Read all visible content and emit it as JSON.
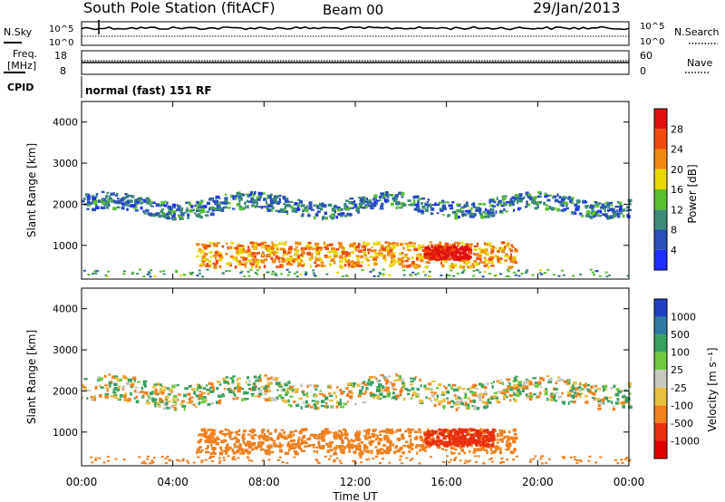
{
  "header": {
    "station": "South Pole Station (fitACF)",
    "beam": "Beam 00",
    "date": "29/Jan/2013"
  },
  "side_panels": {
    "nsky_label": "N.Sky",
    "nsky_tick_top": "10^5",
    "nsky_tick_bottom": "10^0",
    "nsearch_label": "N.Search",
    "nsearch_tick_top": "10^5",
    "nsearch_tick_bottom": "10^0",
    "freq_label_line1": "Freq.",
    "freq_label_line2": "[MHz]",
    "freq_tick_top": "18",
    "freq_tick_bottom": "8",
    "nave_label": "Nave",
    "nave_tick_top": "60",
    "nave_tick_bottom": "0",
    "cpid_label": "CPID",
    "cpid_value": "normal (fast) 151 RF"
  },
  "axes": {
    "y_label": "Slant Range [km]",
    "y_ticks": [
      "1000",
      "2000",
      "3000",
      "4000"
    ],
    "x_label": "Time UT",
    "x_ticks": [
      "00:00",
      "04:00",
      "08:00",
      "12:00",
      "16:00",
      "20:00",
      "00:00"
    ]
  },
  "colorbars": {
    "power": {
      "label": "Power [dB]",
      "ticks": [
        "4",
        "8",
        "12",
        "16",
        "20",
        "24",
        "28"
      ],
      "colors": [
        "#1f2fff",
        "#2850b8",
        "#3c8c78",
        "#58c030",
        "#e8d800",
        "#f08a10",
        "#f04a10",
        "#e01010"
      ]
    },
    "velocity": {
      "label": "Velocity [m s⁻¹]",
      "ticks": [
        "1000",
        "500",
        "100",
        "25",
        "-25",
        "-100",
        "-500",
        "-1000"
      ],
      "colors": [
        "#2040c0",
        "#2e7aa0",
        "#38a060",
        "#70c840",
        "#c8c8c0",
        "#e8c040",
        "#f08020",
        "#e83010",
        "#e00000"
      ]
    }
  },
  "chart_data": [
    {
      "type": "heatmap",
      "title": "Power",
      "x_range_hours": [
        0,
        24
      ],
      "y_range_km": [
        180,
        4500
      ],
      "color_range_dB": [
        0,
        30
      ],
      "features": [
        {
          "name": "upper band",
          "x_hours": [
            0,
            24
          ],
          "range_km": [
            1800,
            2200
          ],
          "value_dB": 8
        },
        {
          "name": "near range echoes",
          "x_hours": [
            5,
            19
          ],
          "range_km": [
            500,
            1100
          ],
          "value_dB": 20
        },
        {
          "name": "peak echoes",
          "x_hours": [
            15,
            17
          ],
          "range_km": [
            700,
            1000
          ],
          "value_dB": 28
        }
      ]
    },
    {
      "type": "heatmap",
      "title": "Velocity",
      "x_range_hours": [
        0,
        24
      ],
      "y_range_km": [
        180,
        4500
      ],
      "color_range_ms": [
        -1000,
        1000
      ],
      "features": [
        {
          "name": "upper band",
          "x_hours": [
            0,
            24
          ],
          "range_km": [
            1700,
            2300
          ],
          "value_ms": 0
        },
        {
          "name": "near range echoes",
          "x_hours": [
            5,
            19
          ],
          "range_km": [
            500,
            1100
          ],
          "value_ms": -300
        },
        {
          "name": "peak echoes",
          "x_hours": [
            15,
            18
          ],
          "range_km": [
            700,
            1100
          ],
          "value_ms": -700
        }
      ]
    }
  ]
}
